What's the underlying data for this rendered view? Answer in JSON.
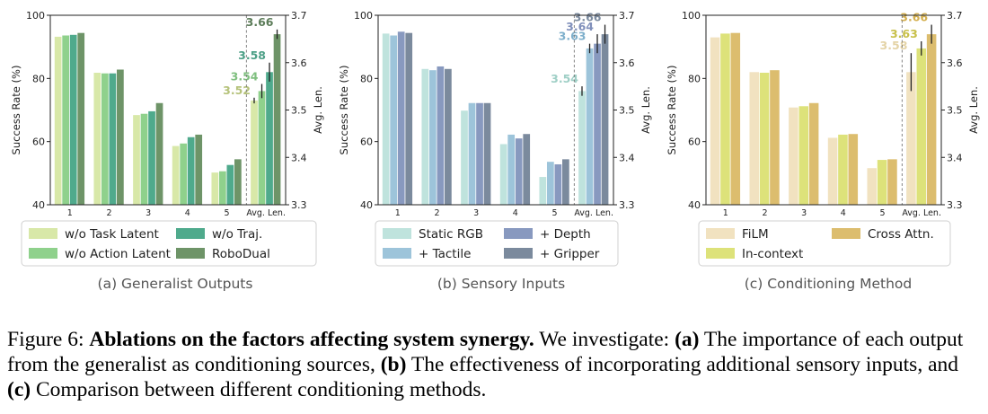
{
  "figure": {
    "label": "Figure 6:",
    "title_bold": "Ablations on the factors affecting system synergy.",
    "intro": "We investigate:",
    "part_a_label": "(a)",
    "part_a_text": "The importance of each output from the generalist as conditioning sources,",
    "part_b_label": "(b)",
    "part_b_text": "The effectiveness of incorporating additional sensory inputs, and",
    "part_c_label": "(c)",
    "part_c_text": "Comparison between different conditioning methods."
  },
  "chart_data": [
    {
      "type": "bar",
      "subcaption": "(a) Generalist Outputs",
      "ylabel": "Success Rate (%)",
      "ylabel_right": "Avg. Len.",
      "ylim": [
        40,
        100
      ],
      "yticks": [
        "40",
        "60",
        "80",
        "100"
      ],
      "ylim_right": [
        3.3,
        3.7
      ],
      "yticks_right": [
        "3.3",
        "3.4",
        "3.5",
        "3.6",
        "3.7"
      ],
      "categories": [
        "1",
        "2",
        "3",
        "4",
        "5"
      ],
      "avg_label": "Avg. Len.",
      "series": [
        {
          "name": "w/o Task Latent",
          "color": "#d8e8a8",
          "values": [
            93.2,
            81.8,
            68.4,
            58.6,
            50.2
          ],
          "avg_len": 3.52,
          "avg_err": 0.006
        },
        {
          "name": "w/o Action Latent",
          "color": "#8fd18c",
          "values": [
            93.6,
            81.6,
            68.8,
            59.4,
            50.6
          ],
          "avg_len": 3.54,
          "avg_err": 0.015
        },
        {
          "name": "w/o Traj.",
          "color": "#4faa8c",
          "values": [
            93.8,
            81.6,
            69.6,
            61.4,
            52.6
          ],
          "avg_len": 3.58,
          "avg_err": 0.02
        },
        {
          "name": "RoboDual",
          "color": "#6e9468",
          "values": [
            94.4,
            82.8,
            72.2,
            62.2,
            54.4
          ],
          "avg_len": 3.66,
          "avg_err": 0.01
        }
      ],
      "avg_labels": [
        "3.52",
        "3.54",
        "3.58",
        "3.66"
      ],
      "avg_label_colors": [
        "#b5c27a",
        "#7fbf7f",
        "#4c9f86",
        "#5d7d5a"
      ]
    },
    {
      "type": "bar",
      "subcaption": "(b) Sensory Inputs",
      "ylabel": "Success Rate (%)",
      "ylabel_right": "Avg. Len.",
      "ylim": [
        40,
        100
      ],
      "yticks": [
        "40",
        "60",
        "80",
        "100"
      ],
      "ylim_right": [
        3.3,
        3.7
      ],
      "yticks_right": [
        "3.3",
        "3.4",
        "3.5",
        "3.6",
        "3.7"
      ],
      "categories": [
        "1",
        "2",
        "3",
        "4",
        "5"
      ],
      "avg_label": "Avg. Len.",
      "series": [
        {
          "name": "Static RGB",
          "color": "#bfe3dd",
          "values": [
            94.2,
            83.0,
            69.8,
            59.2,
            48.8
          ],
          "avg_len": 3.54,
          "avg_err": 0.01
        },
        {
          "name": "+ Tactile",
          "color": "#9dc4da",
          "values": [
            93.6,
            82.6,
            72.2,
            62.2,
            53.6
          ],
          "avg_len": 3.63,
          "avg_err": 0.01
        },
        {
          "name": "+ Depth",
          "color": "#8899bf",
          "values": [
            94.8,
            83.8,
            72.2,
            61.0,
            52.8
          ],
          "avg_len": 3.64,
          "avg_err": 0.02
        },
        {
          "name": "+ Gripper",
          "color": "#7b8a9d",
          "values": [
            94.4,
            83.0,
            72.2,
            62.4,
            54.4
          ],
          "avg_len": 3.66,
          "avg_err": 0.02
        }
      ],
      "avg_labels": [
        "3.54",
        "3.63",
        "3.64",
        "3.66"
      ],
      "avg_label_colors": [
        "#9fcfc6",
        "#7fb0cc",
        "#8090bb",
        "#7d8ca0"
      ]
    },
    {
      "type": "bar",
      "subcaption": "(c) Conditioning Method",
      "ylabel": "Success Rate (%)",
      "ylabel_right": "Avg. Len.",
      "ylim": [
        40,
        100
      ],
      "yticks": [
        "40",
        "60",
        "80",
        "100"
      ],
      "ylim_right": [
        3.3,
        3.7
      ],
      "yticks_right": [
        "3.3",
        "3.4",
        "3.5",
        "3.6",
        "3.7"
      ],
      "categories": [
        "1",
        "2",
        "3",
        "4",
        "5"
      ],
      "avg_label": "Avg. Len.",
      "series": [
        {
          "name": "FiLM",
          "color": "#f1e2c0",
          "values": [
            93.0,
            82.0,
            70.8,
            61.2,
            51.6
          ],
          "avg_len": 3.58,
          "avg_err": 0.04
        },
        {
          "name": "In-context",
          "color": "#dde27a",
          "values": [
            94.2,
            81.8,
            71.2,
            62.2,
            54.2
          ],
          "avg_len": 3.63,
          "avg_err": 0.015
        },
        {
          "name": "Cross Attn.",
          "color": "#dcbd6e",
          "values": [
            94.4,
            82.6,
            72.2,
            62.4,
            54.4
          ],
          "avg_len": 3.66,
          "avg_err": 0.02
        }
      ],
      "avg_labels": [
        "3.58",
        "3.63",
        "3.66"
      ],
      "avg_label_colors": [
        "#e4d3a6",
        "#c8c04a",
        "#d4b050"
      ]
    }
  ]
}
